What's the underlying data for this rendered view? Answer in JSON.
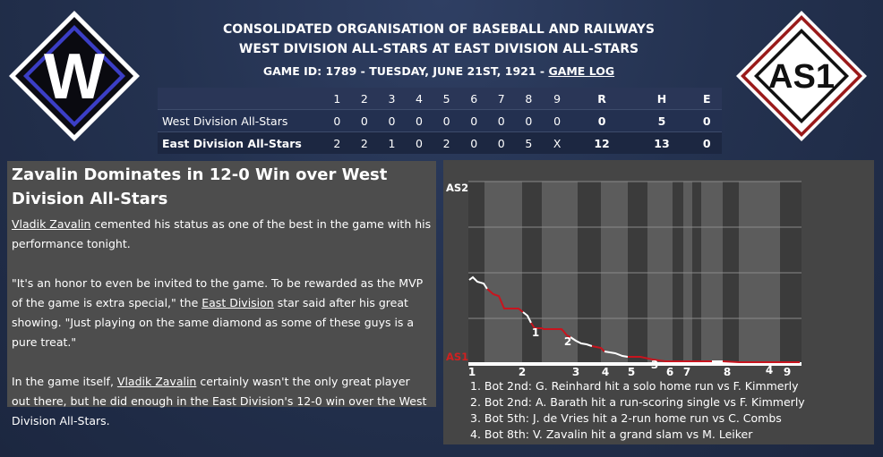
{
  "header": {
    "line1": "CONSOLIDATED ORGANISATION OF BASEBALL AND RAILWAYS",
    "line2": "WEST DIVISION ALL-STARS AT EAST DIVISION ALL-STARS",
    "line3": "GAME ID: 1789 - TUESDAY, JUNE 21ST, 1921 - ",
    "game_log_link": "GAME LOG"
  },
  "logos": {
    "away": {
      "text": "W",
      "accent": "#3b3ec6"
    },
    "home": {
      "text": "AS1",
      "accent": "#9a1a1a"
    }
  },
  "boxscore": {
    "columns": [
      "1",
      "2",
      "3",
      "4",
      "5",
      "6",
      "7",
      "8",
      "9",
      "R",
      "H",
      "E"
    ],
    "rows": [
      {
        "team": "West Division All-Stars",
        "values": [
          "0",
          "0",
          "0",
          "0",
          "0",
          "0",
          "0",
          "0",
          "0",
          "0",
          "5",
          "0"
        ]
      },
      {
        "team": "East Division All-Stars",
        "values": [
          "2",
          "2",
          "1",
          "0",
          "2",
          "0",
          "0",
          "5",
          "X",
          "12",
          "13",
          "0"
        ]
      }
    ]
  },
  "story": {
    "headline": "Zavalin Dominates in 12-0 Win over West Division All-Stars",
    "p1_link": "Vladik Zavalin",
    "p1_rest": " cemented his status as one of the best in the game with his performance tonight.",
    "p2_a": "\"It's an honor to even be invited to the game. To be rewarded as the MVP of the game is extra special,\" the ",
    "p2_link": "East Division",
    "p2_b": " star said after his great showing. \"Just playing on the same diamond as some of these guys is a pure treat.\"",
    "p3_a": "In the game itself, ",
    "p3_link": "Vladik Zavalin",
    "p3_b": " certainly wasn't the only great player out there, but he did enough in the East Division's 12-0 win over the West Division All-Stars."
  },
  "win_prob": {
    "top_label": "AS2",
    "bottom_label": "AS1",
    "inning_labels": [
      "1",
      "2",
      "3",
      "4",
      "5",
      "6",
      "7",
      "8",
      "9"
    ],
    "marker_labels": [
      "1",
      "2",
      "3",
      "4"
    ],
    "key_plays": [
      "1. Bot 2nd: G. Reinhard hit a solo home run vs F. Kimmerly",
      "2. Bot 2nd: A. Barath hit a run-scoring single vs F. Kimmerly",
      "3. Bot 5th: J. de Vries hit a 2-run home run vs C. Combs",
      "4. Bot 8th: V. Zavalin hit a grand slam vs M. Leiker"
    ],
    "colors": {
      "away_line": "#ffffff",
      "home_line": "#c8141e",
      "top_label": "#ffffff",
      "bottom_label": "#d02020"
    }
  }
}
